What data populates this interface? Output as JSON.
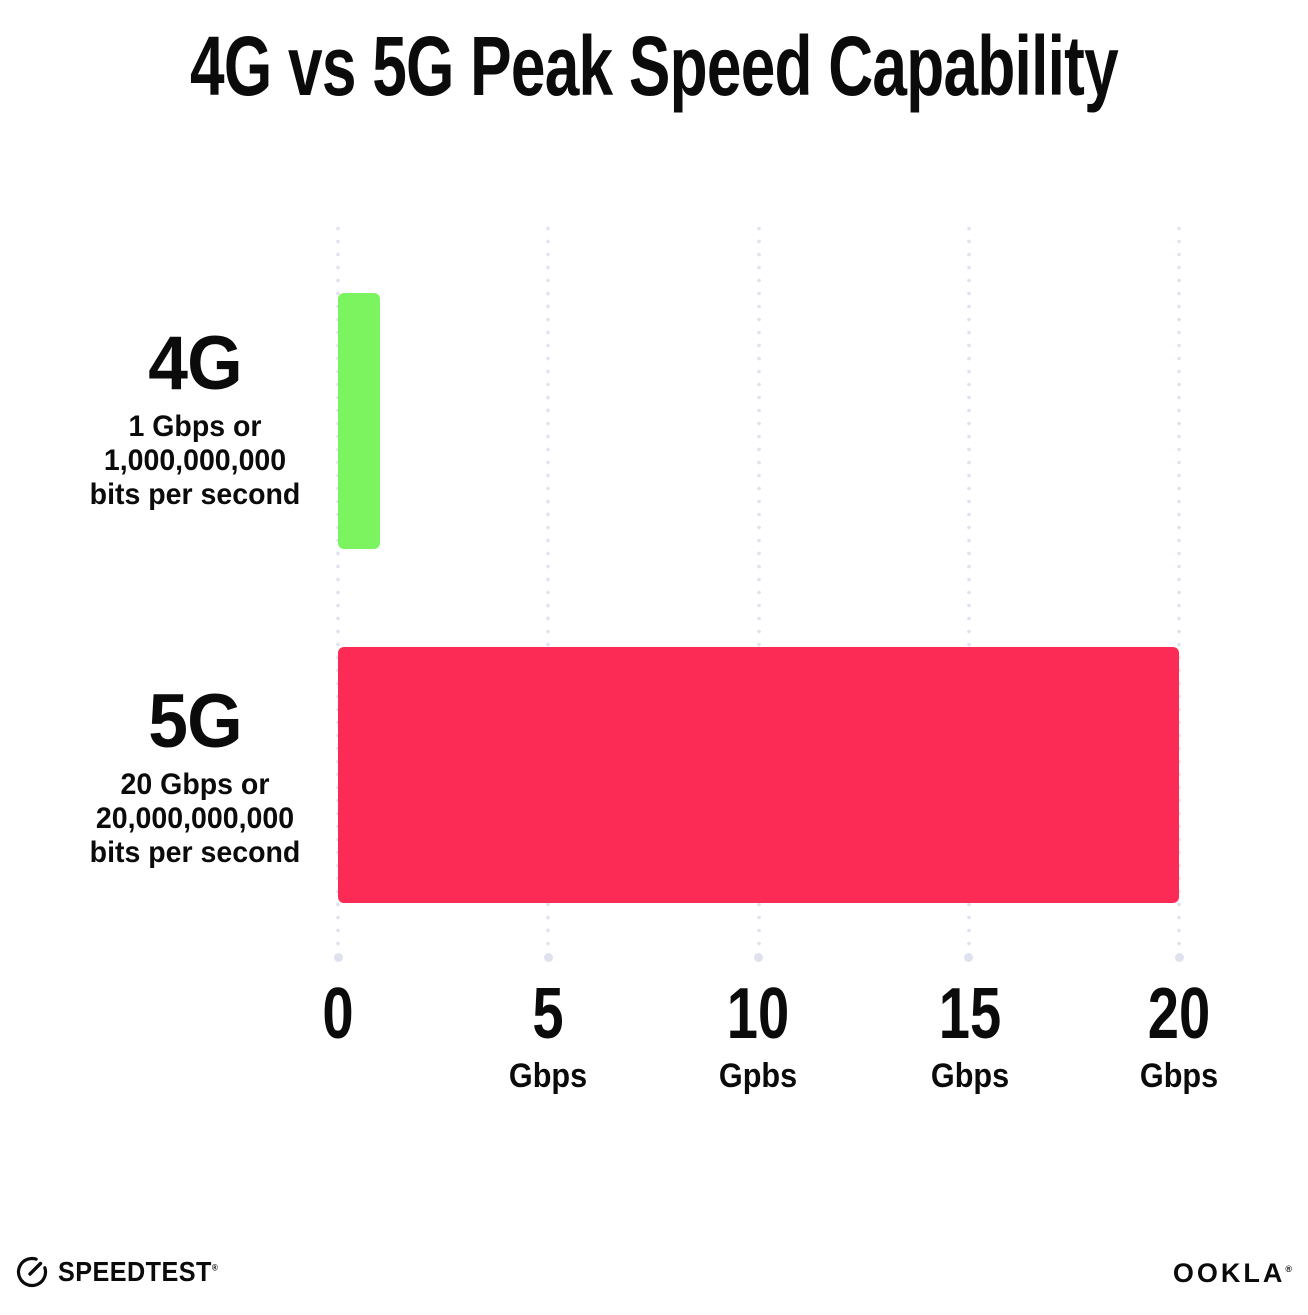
{
  "chart_data": {
    "type": "bar",
    "orientation": "horizontal",
    "title": "4G vs 5G Peak Speed Capability",
    "xlim": [
      0,
      20
    ],
    "grid": "dotted-vertical",
    "categories": [
      "4G",
      "5G"
    ],
    "values": [
      1,
      20
    ],
    "rows": [
      {
        "name": "4G",
        "value": 1,
        "color": "#7cf45f",
        "sub1": "1 Gbps or",
        "sub2": "1,000,000,000",
        "sub3": "bits per second"
      },
      {
        "name": "5G",
        "value": 20,
        "color": "#fc2b55",
        "sub1": "20 Gbps or",
        "sub2": "20,000,000,000",
        "sub3": "bits per second"
      }
    ],
    "x_ticks": [
      {
        "value": "0",
        "unit": ""
      },
      {
        "value": "5",
        "unit": "Gbps"
      },
      {
        "value": "10",
        "unit": "Gpbs"
      },
      {
        "value": "15",
        "unit": "Gbps"
      },
      {
        "value": "20",
        "unit": "Gbps"
      }
    ]
  },
  "colors": {
    "bar_4g": "#7cf45f",
    "bar_5g": "#fc2b55",
    "gridline": "#e2e3f0",
    "gridline_end_dot": "#dfe1ee",
    "text": "#0b0b0b",
    "background": "#ffffff"
  },
  "footer": {
    "brand_left": "SPEEDTEST",
    "brand_left_tm": "®",
    "brand_right": "OOKLA",
    "brand_right_tm": "®"
  }
}
